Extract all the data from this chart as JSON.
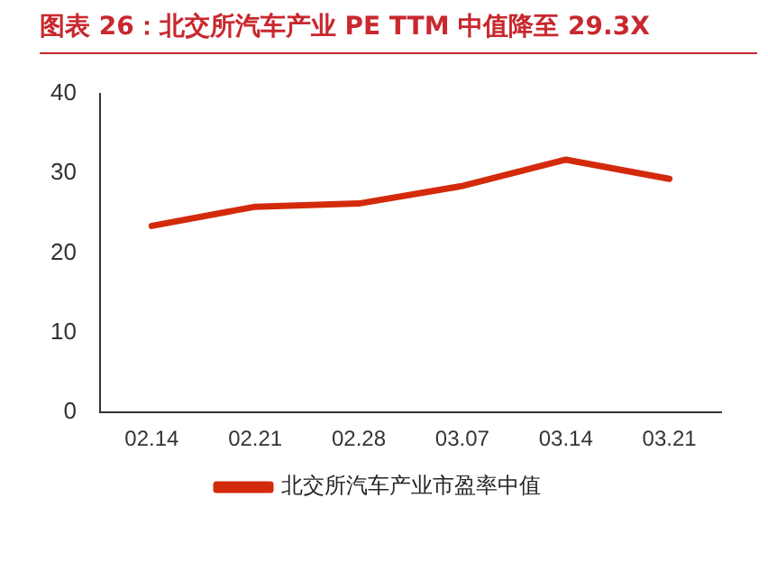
{
  "chart_data": {
    "type": "line",
    "title": "图表 26：北交所汽车产业 PE TTM 中值降至 29.3X",
    "categories": [
      "02.14",
      "02.21",
      "02.28",
      "03.07",
      "03.14",
      "03.21"
    ],
    "series": [
      {
        "name": "北交所汽车产业市盈率中值",
        "color": "#d42a0c",
        "values": [
          23.4,
          25.8,
          26.2,
          28.4,
          31.7,
          29.3
        ]
      }
    ],
    "ylim": [
      0,
      40
    ],
    "yticks": [
      0,
      10,
      20,
      30,
      40
    ],
    "grid": false,
    "legend": "bottom",
    "marker": "none",
    "line_style": "solid"
  }
}
